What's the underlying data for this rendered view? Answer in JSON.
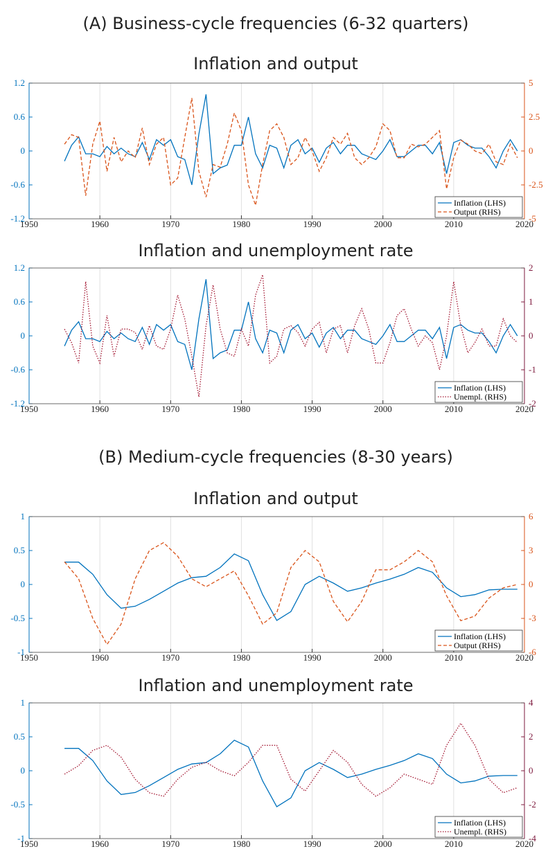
{
  "panels": [
    "(A) Business-cycle frequencies (6-32 quarters)",
    "(B) Medium-cycle frequencies (8-30 years)"
  ],
  "chart_data": [
    {
      "type": "line",
      "title": "Inflation and output",
      "grid": true,
      "legend": "lower right",
      "x": [
        1955,
        1956,
        1957,
        1958,
        1959,
        1960,
        1961,
        1962,
        1963,
        1964,
        1965,
        1966,
        1967,
        1968,
        1969,
        1970,
        1971,
        1972,
        1973,
        1974,
        1975,
        1976,
        1977,
        1978,
        1979,
        1980,
        1981,
        1982,
        1983,
        1984,
        1985,
        1986,
        1987,
        1988,
        1989,
        1990,
        1991,
        1992,
        1993,
        1994,
        1995,
        1996,
        1997,
        1998,
        1999,
        2000,
        2001,
        2002,
        2003,
        2004,
        2005,
        2006,
        2007,
        2008,
        2009,
        2010,
        2011,
        2012,
        2013,
        2014,
        2015,
        2016,
        2017,
        2018,
        2019
      ],
      "xlim": [
        1950,
        2020
      ],
      "xticks": [
        1950,
        1960,
        1970,
        1980,
        1990,
        2000,
        2010,
        2020
      ],
      "ylim": [
        -1.2,
        1.2
      ],
      "yticks": [
        -1.2,
        -0.6,
        0,
        0.6,
        1.2
      ],
      "y_color": "#0072bd",
      "y2lim": [
        -5,
        5
      ],
      "y2ticks": [
        -5,
        -2.5,
        0,
        2.5,
        5
      ],
      "y2_color": "#d95319",
      "series": [
        {
          "name": "Inflation (LHS)",
          "color": "#0072bd",
          "dash": "solid",
          "values": [
            -0.18,
            0.1,
            0.25,
            -0.05,
            -0.05,
            -0.1,
            0.08,
            -0.05,
            0.05,
            -0.05,
            -0.1,
            0.15,
            -0.15,
            0.2,
            0.1,
            0.2,
            -0.1,
            -0.15,
            -0.6,
            0.3,
            1.0,
            -0.4,
            -0.3,
            -0.25,
            0.1,
            0.1,
            0.6,
            -0.05,
            -0.3,
            0.1,
            0.05,
            -0.3,
            0.1,
            0.2,
            -0.05,
            0.05,
            -0.2,
            0.05,
            0.15,
            -0.05,
            0.1,
            0.1,
            -0.05,
            -0.1,
            -0.15,
            0.0,
            0.2,
            -0.1,
            -0.1,
            0.0,
            0.1,
            0.1,
            -0.05,
            0.15,
            -0.4,
            0.15,
            0.2,
            0.1,
            0.05,
            0.05,
            -0.1,
            -0.3,
            0.0,
            0.2,
            0.0
          ]
        },
        {
          "name": "Output (RHS)",
          "color": "#d95319",
          "dash": "dashed",
          "axis": "y2",
          "values": [
            0.5,
            1.2,
            1.0,
            -3.3,
            0.5,
            2.2,
            -1.5,
            1.0,
            -0.8,
            0.0,
            -0.5,
            1.7,
            -1.0,
            0.5,
            1.0,
            -2.5,
            -2.0,
            1.0,
            3.9,
            -1.5,
            -3.4,
            -1.0,
            -1.2,
            0.5,
            2.8,
            1.5,
            -2.5,
            -4.0,
            -1.0,
            1.5,
            2.0,
            1.0,
            -1.0,
            -0.5,
            1.0,
            0.0,
            -1.5,
            -0.5,
            1.0,
            0.5,
            1.3,
            -0.5,
            -1.0,
            -0.5,
            0.3,
            2.0,
            1.5,
            -0.5,
            -0.5,
            0.5,
            0.3,
            0.5,
            1.0,
            1.5,
            -2.8,
            -0.5,
            0.8,
            0.5,
            0.0,
            -0.2,
            0.5,
            -0.8,
            -1.0,
            0.5,
            -0.5
          ]
        }
      ]
    },
    {
      "type": "line",
      "title": "Inflation and unemployment rate",
      "grid": true,
      "legend": "lower right",
      "x": [
        1955,
        1956,
        1957,
        1958,
        1959,
        1960,
        1961,
        1962,
        1963,
        1964,
        1965,
        1966,
        1967,
        1968,
        1969,
        1970,
        1971,
        1972,
        1973,
        1974,
        1975,
        1976,
        1977,
        1978,
        1979,
        1980,
        1981,
        1982,
        1983,
        1984,
        1985,
        1986,
        1987,
        1988,
        1989,
        1990,
        1991,
        1992,
        1993,
        1994,
        1995,
        1996,
        1997,
        1998,
        1999,
        2000,
        2001,
        2002,
        2003,
        2004,
        2005,
        2006,
        2007,
        2008,
        2009,
        2010,
        2011,
        2012,
        2013,
        2014,
        2015,
        2016,
        2017,
        2018,
        2019
      ],
      "xlim": [
        1950,
        2020
      ],
      "xticks": [
        1950,
        1960,
        1970,
        1980,
        1990,
        2000,
        2010,
        2020
      ],
      "ylim": [
        -1.2,
        1.2
      ],
      "yticks": [
        -1.2,
        -0.6,
        0,
        0.6,
        1.2
      ],
      "y_color": "#0072bd",
      "y2lim": [
        -2,
        2
      ],
      "y2ticks": [
        -2,
        -1,
        0,
        1,
        2
      ],
      "y2_color": "#7e1a3e",
      "series": [
        {
          "name": "Inflation (LHS)",
          "color": "#0072bd",
          "dash": "solid",
          "values": [
            -0.18,
            0.1,
            0.25,
            -0.05,
            -0.05,
            -0.1,
            0.08,
            -0.05,
            0.05,
            -0.05,
            -0.1,
            0.15,
            -0.15,
            0.2,
            0.1,
            0.2,
            -0.1,
            -0.15,
            -0.6,
            0.3,
            1.0,
            -0.4,
            -0.3,
            -0.25,
            0.1,
            0.1,
            0.6,
            -0.05,
            -0.3,
            0.1,
            0.05,
            -0.3,
            0.1,
            0.2,
            -0.05,
            0.05,
            -0.2,
            0.05,
            0.15,
            -0.05,
            0.1,
            0.1,
            -0.05,
            -0.1,
            -0.15,
            0.0,
            0.2,
            -0.1,
            -0.1,
            0.0,
            0.1,
            0.1,
            -0.05,
            0.15,
            -0.4,
            0.15,
            0.2,
            0.1,
            0.05,
            0.05,
            -0.1,
            -0.3,
            0.0,
            0.2,
            0.0
          ]
        },
        {
          "name": "Unempl. (RHS)",
          "color": "#a2142f",
          "dash": "dotted",
          "axis": "y2",
          "values": [
            0.2,
            -0.2,
            -0.8,
            1.6,
            -0.3,
            -0.8,
            0.6,
            -0.6,
            0.2,
            0.2,
            0.1,
            -0.4,
            0.3,
            -0.3,
            -0.4,
            0.2,
            1.2,
            0.5,
            -0.6,
            -1.8,
            0.3,
            1.5,
            0.2,
            -0.5,
            -0.6,
            0.2,
            -0.3,
            1.2,
            1.8,
            -0.8,
            -0.6,
            0.2,
            0.3,
            0.1,
            -0.3,
            0.2,
            0.4,
            -0.5,
            0.2,
            0.3,
            -0.5,
            0.3,
            0.8,
            0.2,
            -0.8,
            -0.8,
            -0.2,
            0.6,
            0.8,
            0.2,
            -0.3,
            0.0,
            -0.2,
            -1.0,
            0.0,
            1.6,
            0.3,
            -0.5,
            -0.2,
            0.2,
            -0.3,
            -0.3,
            0.5,
            0.0,
            -0.2
          ]
        }
      ]
    },
    {
      "type": "line",
      "title": "Inflation and output",
      "grid": true,
      "legend": "lower right",
      "x": [
        1955,
        1957,
        1959,
        1961,
        1963,
        1965,
        1967,
        1969,
        1971,
        1973,
        1975,
        1977,
        1979,
        1981,
        1983,
        1985,
        1987,
        1989,
        1991,
        1993,
        1995,
        1997,
        1999,
        2001,
        2003,
        2005,
        2007,
        2009,
        2011,
        2013,
        2015,
        2017,
        2019
      ],
      "xlim": [
        1950,
        2020
      ],
      "xticks": [
        1950,
        1960,
        1970,
        1980,
        1990,
        2000,
        2010,
        2020
      ],
      "ylim": [
        -1,
        1
      ],
      "yticks": [
        -1,
        -0.5,
        0,
        0.5,
        1
      ],
      "y_color": "#0072bd",
      "y2lim": [
        -6,
        6
      ],
      "y2ticks": [
        -6,
        -3,
        0,
        3,
        6
      ],
      "y2_color": "#d95319",
      "series": [
        {
          "name": "Inflation (LHS)",
          "color": "#0072bd",
          "dash": "solid",
          "values": [
            0.33,
            0.33,
            0.15,
            -0.15,
            -0.35,
            -0.32,
            -0.22,
            -0.1,
            0.02,
            0.1,
            0.12,
            0.25,
            0.45,
            0.35,
            -0.15,
            -0.53,
            -0.4,
            0.0,
            0.12,
            0.02,
            -0.1,
            -0.05,
            0.02,
            0.08,
            0.15,
            0.25,
            0.18,
            -0.05,
            -0.18,
            -0.15,
            -0.08,
            -0.07,
            -0.07
          ]
        },
        {
          "name": "Output (RHS)",
          "color": "#d95319",
          "dash": "dashed",
          "axis": "y2",
          "values": [
            2.0,
            0.5,
            -3.0,
            -5.3,
            -3.5,
            0.5,
            3.0,
            3.7,
            2.5,
            0.5,
            -0.2,
            0.5,
            1.2,
            -1.0,
            -3.5,
            -2.5,
            1.5,
            3.0,
            2.0,
            -1.5,
            -3.3,
            -1.5,
            1.3,
            1.3,
            2.0,
            3.0,
            2.0,
            -1.0,
            -3.2,
            -2.8,
            -1.2,
            -0.3,
            0.0
          ]
        }
      ]
    },
    {
      "type": "line",
      "title": "Inflation and unemployment rate",
      "grid": true,
      "legend": "lower right",
      "x": [
        1955,
        1957,
        1959,
        1961,
        1963,
        1965,
        1967,
        1969,
        1971,
        1973,
        1975,
        1977,
        1979,
        1981,
        1983,
        1985,
        1987,
        1989,
        1991,
        1993,
        1995,
        1997,
        1999,
        2001,
        2003,
        2005,
        2007,
        2009,
        2011,
        2013,
        2015,
        2017,
        2019
      ],
      "xlim": [
        1950,
        2020
      ],
      "xticks": [
        1950,
        1960,
        1970,
        1980,
        1990,
        2000,
        2010,
        2020
      ],
      "ylim": [
        -1,
        1
      ],
      "yticks": [
        -1,
        -0.5,
        0,
        0.5,
        1
      ],
      "y_color": "#0072bd",
      "y2lim": [
        -4,
        4
      ],
      "y2ticks": [
        -4,
        -2,
        0,
        2,
        4
      ],
      "y2_color": "#7e1a3e",
      "series": [
        {
          "name": "Inflation (LHS)",
          "color": "#0072bd",
          "dash": "solid",
          "values": [
            0.33,
            0.33,
            0.15,
            -0.15,
            -0.35,
            -0.32,
            -0.22,
            -0.1,
            0.02,
            0.1,
            0.12,
            0.25,
            0.45,
            0.35,
            -0.15,
            -0.53,
            -0.4,
            0.0,
            0.12,
            0.02,
            -0.1,
            -0.05,
            0.02,
            0.08,
            0.15,
            0.25,
            0.18,
            -0.05,
            -0.18,
            -0.15,
            -0.08,
            -0.07,
            -0.07
          ]
        },
        {
          "name": "Unempl. (RHS)",
          "color": "#a2142f",
          "dash": "dotted",
          "axis": "y2",
          "values": [
            -0.2,
            0.3,
            1.2,
            1.5,
            0.8,
            -0.5,
            -1.3,
            -1.5,
            -0.5,
            0.2,
            0.5,
            0.0,
            -0.3,
            0.5,
            1.5,
            1.5,
            -0.5,
            -1.2,
            0.0,
            1.2,
            0.5,
            -0.8,
            -1.5,
            -1.0,
            -0.2,
            -0.5,
            -0.8,
            1.5,
            2.8,
            1.5,
            -0.5,
            -1.3,
            -1.0
          ]
        }
      ]
    }
  ]
}
